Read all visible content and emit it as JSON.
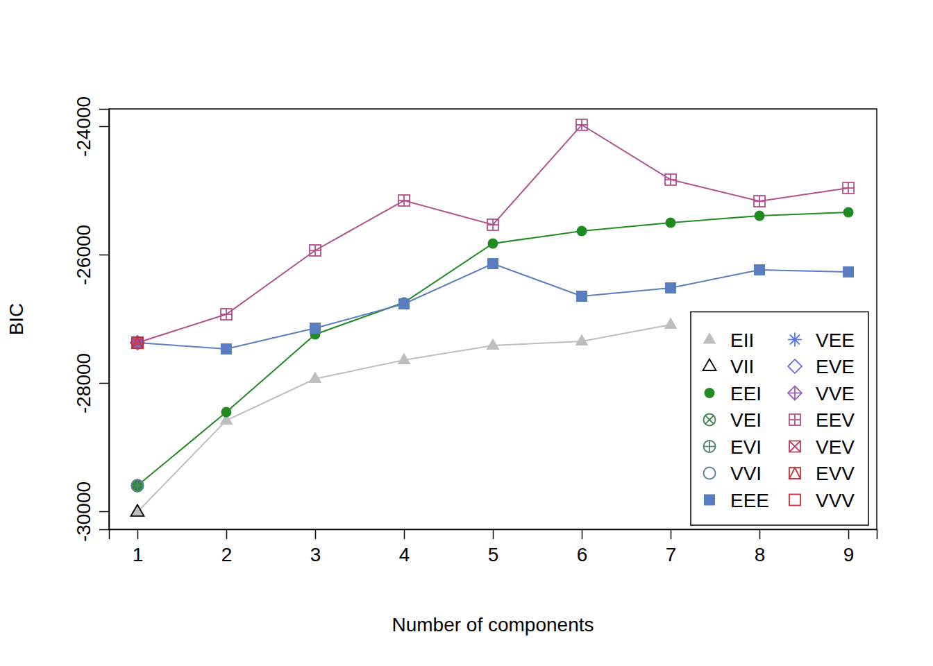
{
  "chart_data": {
    "type": "line",
    "x_label": "Number of components",
    "y_label": "BIC",
    "x": [
      1,
      2,
      3,
      4,
      5,
      6,
      7,
      8,
      9
    ],
    "xlim": [
      0.68,
      9.32
    ],
    "ylim": [
      -30281,
      -23730
    ],
    "xticks": [
      1,
      2,
      3,
      4,
      5,
      6,
      7,
      8,
      9
    ],
    "yticks": [
      -30000,
      -28000,
      -26000,
      -24000
    ],
    "legend": "bottom-right",
    "series": [
      {
        "name": "EII",
        "color": "#bebebe",
        "marker": "triangle-filled",
        "values": [
          -30010,
          -28584,
          -27935,
          -27643,
          -27416,
          -27351,
          -27092,
          null,
          null
        ]
      },
      {
        "name": "VII",
        "color": "#000000",
        "marker": "triangle",
        "values": [
          -30010,
          null,
          null,
          null,
          null,
          null,
          null,
          null,
          null
        ]
      },
      {
        "name": "EEI",
        "color": "#218b21",
        "marker": "circle-filled",
        "values": [
          -29600,
          -28454,
          -27243,
          -26746,
          -25827,
          -25632,
          -25503,
          -25395,
          -25341
        ]
      },
      {
        "name": "VEI",
        "color": "#41884f",
        "marker": "circle-x",
        "values": [
          -29600,
          null,
          null,
          null,
          null,
          null,
          null,
          null,
          null
        ]
      },
      {
        "name": "EVI",
        "color": "#508476",
        "marker": "circle-plus",
        "values": [
          -29600,
          null,
          null,
          null,
          null,
          null,
          null,
          null,
          null
        ]
      },
      {
        "name": "VVI",
        "color": "#58819c",
        "marker": "circle",
        "values": [
          -29600,
          null,
          null,
          null,
          null,
          null,
          null,
          null,
          null
        ]
      },
      {
        "name": "EEE",
        "color": "#597dc1",
        "marker": "square-filled",
        "values": [
          -27373,
          -27470,
          -27146,
          -26768,
          -26141,
          -26649,
          -26519,
          -26238,
          -26270
        ]
      },
      {
        "name": "VEE",
        "color": "#5178ea",
        "marker": "asterisk",
        "values": [
          -27373,
          null,
          null,
          null,
          null,
          null,
          null,
          null,
          null
        ]
      },
      {
        "name": "EVE",
        "color": "#716ee7",
        "marker": "diamond",
        "values": [
          -27373,
          null,
          null,
          null,
          null,
          null,
          null,
          null,
          null
        ]
      },
      {
        "name": "VVE",
        "color": "#9b60b8",
        "marker": "diamond-plus",
        "values": [
          -27373,
          null,
          null,
          null,
          null,
          null,
          null,
          null,
          null
        ]
      },
      {
        "name": "EEV",
        "color": "#b2508b",
        "marker": "square-plus",
        "values": [
          -27373,
          -26930,
          -25935,
          -25157,
          -25535,
          -23978,
          -24832,
          -25168,
          -24962
        ]
      },
      {
        "name": "VEV",
        "color": "#c03f60",
        "marker": "square-x",
        "values": [
          -27373,
          null,
          null,
          null,
          null,
          null,
          null,
          null,
          null
        ]
      },
      {
        "name": "EVV",
        "color": "#c8323a",
        "marker": "square-triangle",
        "values": [
          -27373,
          null,
          null,
          null,
          null,
          null,
          null,
          null,
          null
        ]
      },
      {
        "name": "VVV",
        "color": "#cc2c38",
        "marker": "square",
        "values": [
          -27373,
          null,
          null,
          null,
          null,
          null,
          null,
          null,
          null
        ]
      }
    ]
  }
}
